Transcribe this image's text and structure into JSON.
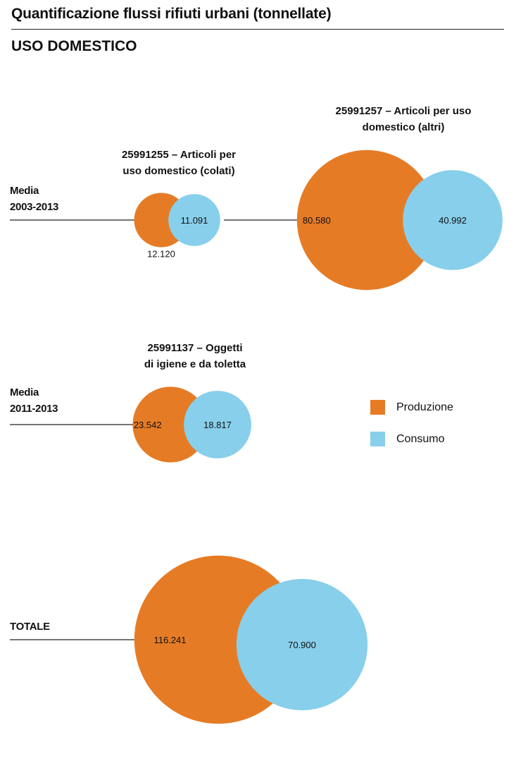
{
  "header": {
    "title": "Quantificazione flussi rifiuti urbani (tonnellate)",
    "subtitle": "USO DOMESTICO"
  },
  "rows": [
    {
      "label_line1": "Media",
      "label_line2": "2003-2013"
    },
    {
      "label_line1": "Media",
      "label_line2": "2011-2013"
    },
    {
      "label_line1": "TOTALE",
      "label_line2": ""
    }
  ],
  "legend": [
    {
      "label": "Produzione",
      "color": "#E67B25"
    },
    {
      "label": "Consumo",
      "color": "#87CFEB"
    }
  ],
  "chart_data": {
    "type": "bubble",
    "unit": "tonnellate",
    "series": [
      "Produzione",
      "Consumo"
    ],
    "colors": {
      "Produzione": "#E67B25",
      "Consumo": "#87CFEB"
    },
    "groups": [
      {
        "row": "Media 2003-2013",
        "title_line1": "25991255 – Articoli per",
        "title_line2": "uso domestico (colati)",
        "produzione": 12120,
        "consumo": 11091,
        "produzione_label": "12.120",
        "consumo_label": "11.091"
      },
      {
        "row": "Media 2003-2013",
        "title_line1": "25991257 – Articoli per uso",
        "title_line2": "domestico (altri)",
        "produzione": 80580,
        "consumo": 40992,
        "produzione_label": "80.580",
        "consumo_label": "40.992"
      },
      {
        "row": "Media 2011-2013",
        "title_line1": "25991137 – Oggetti",
        "title_line2": "di igiene e da toletta",
        "produzione": 23542,
        "consumo": 18817,
        "produzione_label": "23.542",
        "consumo_label": "18.817"
      },
      {
        "row": "TOTALE",
        "title_line1": "",
        "title_line2": "",
        "produzione": 116241,
        "consumo": 70900,
        "produzione_label": "116.241",
        "consumo_label": "70.900"
      }
    ]
  }
}
